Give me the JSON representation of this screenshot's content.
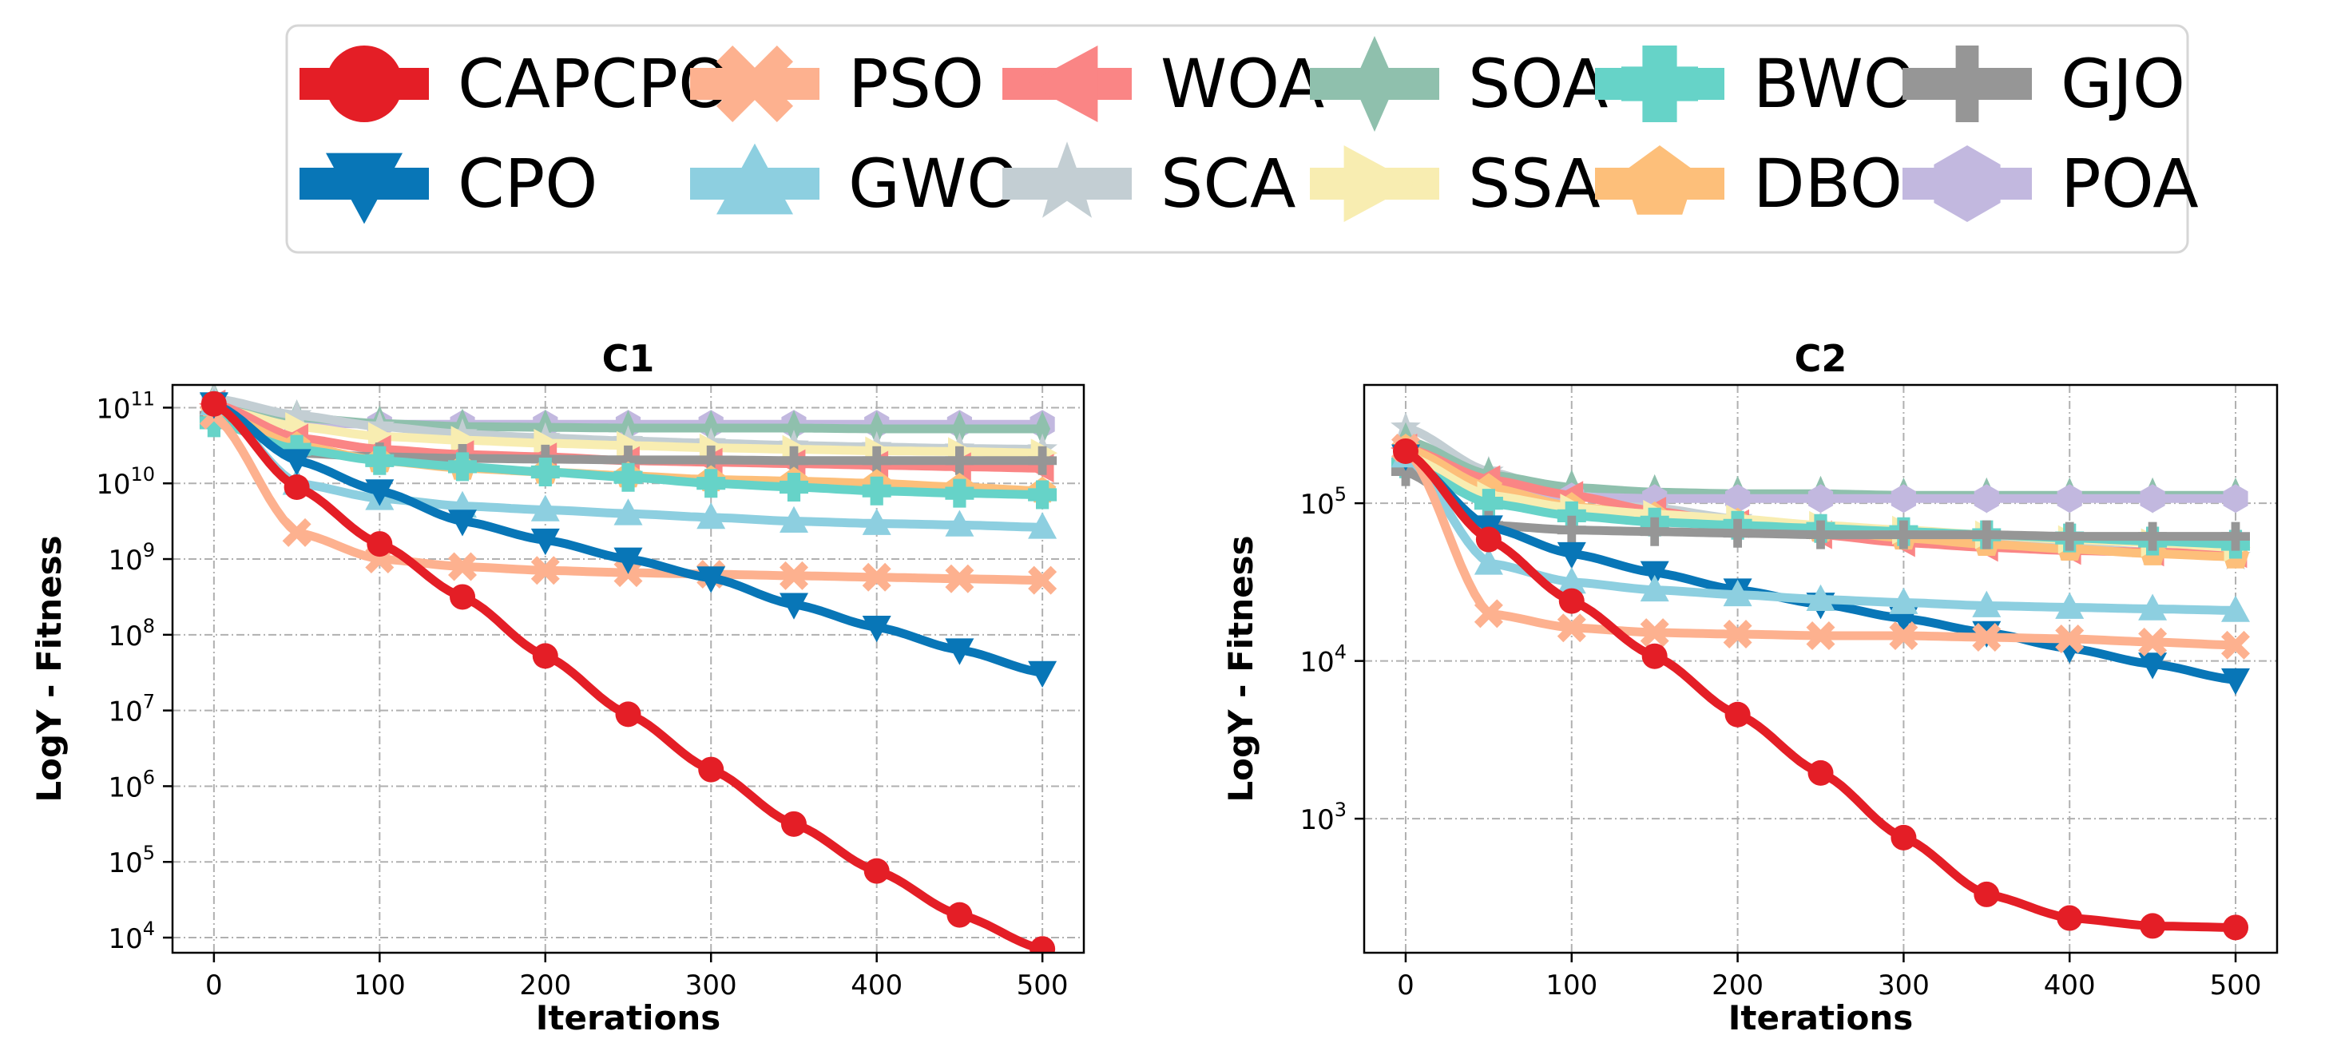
{
  "legend": {
    "items": [
      {
        "label": "CAPCPO",
        "color": "#e41e26",
        "marker": "circle"
      },
      {
        "label": "PSO",
        "color": "#fdb18f",
        "marker": "x"
      },
      {
        "label": "WOA",
        "color": "#fa8585",
        "marker": "tri-left"
      },
      {
        "label": "SOA",
        "color": "#8fc0ad",
        "marker": "diamond-thin"
      },
      {
        "label": "BWO",
        "color": "#66d3c8",
        "marker": "plus-fat"
      },
      {
        "label": "GJO",
        "color": "#969696",
        "marker": "plus"
      },
      {
        "label": "CPO",
        "color": "#0876b7",
        "marker": "tri-down"
      },
      {
        "label": "GWO",
        "color": "#8dcfe0",
        "marker": "tri-up"
      },
      {
        "label": "SCA",
        "color": "#c3ced3",
        "marker": "star"
      },
      {
        "label": "SSA",
        "color": "#f8edb1",
        "marker": "tri-right"
      },
      {
        "label": "DBO",
        "color": "#fdbf7a",
        "marker": "pentagon"
      },
      {
        "label": "POA",
        "color": "#c2b8df",
        "marker": "hexagon"
      }
    ]
  },
  "chart_data": [
    {
      "type": "line",
      "title": "C1",
      "xlabel": "Iterations",
      "ylabel": "LogY - Fitness",
      "yscale": "log",
      "xlim": [
        -25,
        525
      ],
      "ylim_exp": [
        3.8,
        11.3
      ],
      "xticks": [
        0,
        100,
        200,
        300,
        400,
        500
      ],
      "xtick_labels": [
        "0",
        "100",
        "200",
        "300",
        "400",
        "500"
      ],
      "yticks": [
        4,
        5,
        6,
        7,
        8,
        9,
        10,
        11
      ],
      "ytick_base": "10",
      "ytick_exps": [
        "4",
        "5",
        "6",
        "7",
        "8",
        "9",
        "10",
        "11"
      ],
      "grid": true,
      "x": [
        0,
        50,
        100,
        150,
        200,
        250,
        300,
        350,
        400,
        450,
        500
      ],
      "series": [
        {
          "name": "POA",
          "color": "#c2b8df",
          "marker": "hexagon",
          "log10": [
            11.05,
            10.8,
            10.78,
            10.78,
            10.78,
            10.78,
            10.78,
            10.78,
            10.78,
            10.78,
            10.78
          ]
        },
        {
          "name": "SOA",
          "color": "#8fc0ad",
          "marker": "diamond-thin",
          "log10": [
            11.1,
            10.87,
            10.79,
            10.75,
            10.74,
            10.73,
            10.73,
            10.73,
            10.72,
            10.72,
            10.72
          ]
        },
        {
          "name": "SCA",
          "color": "#c3ced3",
          "marker": "star",
          "log10": [
            11.12,
            10.9,
            10.75,
            10.65,
            10.6,
            10.56,
            10.53,
            10.5,
            10.48,
            10.46,
            10.45
          ]
        },
        {
          "name": "SSA",
          "color": "#f8edb1",
          "marker": "tri-right",
          "log10": [
            11.0,
            10.75,
            10.62,
            10.57,
            10.53,
            10.5,
            10.47,
            10.45,
            10.43,
            10.42,
            10.4
          ]
        },
        {
          "name": "WOA",
          "color": "#fa8585",
          "marker": "tri-left",
          "log10": [
            11.05,
            10.6,
            10.45,
            10.38,
            10.35,
            10.3,
            10.28,
            10.26,
            10.24,
            10.22,
            10.2
          ]
        },
        {
          "name": "GJO",
          "color": "#969696",
          "marker": "plus",
          "log10": [
            10.9,
            10.4,
            10.35,
            10.33,
            10.32,
            10.31,
            10.31,
            10.3,
            10.3,
            10.3,
            10.3
          ]
        },
        {
          "name": "DBO",
          "color": "#fdbf7a",
          "marker": "pentagon",
          "log10": [
            10.95,
            10.5,
            10.3,
            10.2,
            10.15,
            10.1,
            10.05,
            10.03,
            10.0,
            9.95,
            9.9
          ]
        },
        {
          "name": "BWO",
          "color": "#66d3c8",
          "marker": "plus-fat",
          "log10": [
            10.8,
            10.45,
            10.3,
            10.22,
            10.15,
            10.08,
            10.0,
            9.95,
            9.9,
            9.87,
            9.85
          ]
        },
        {
          "name": "GWO",
          "color": "#8dcfe0",
          "marker": "tri-up",
          "log10": [
            11.05,
            10.0,
            9.8,
            9.7,
            9.65,
            9.6,
            9.55,
            9.5,
            9.47,
            9.45,
            9.42
          ]
        },
        {
          "name": "PSO",
          "color": "#fdb18f",
          "marker": "x",
          "log10": [
            10.9,
            9.35,
            9.0,
            8.9,
            8.85,
            8.82,
            8.8,
            8.78,
            8.76,
            8.74,
            8.72
          ]
        },
        {
          "name": "CPO",
          "color": "#0876b7",
          "marker": "tri-down",
          "log10": [
            11.05,
            10.3,
            9.9,
            9.5,
            9.25,
            9.0,
            8.75,
            8.4,
            8.1,
            7.8,
            7.5
          ]
        },
        {
          "name": "CAPCPO",
          "color": "#e41e26",
          "marker": "circle",
          "log10": [
            11.05,
            9.95,
            9.2,
            8.5,
            7.72,
            6.95,
            6.22,
            5.5,
            4.88,
            4.3,
            3.85
          ]
        }
      ]
    },
    {
      "type": "line",
      "title": "C2",
      "xlabel": "Iterations",
      "ylabel": "LogY - Fitness",
      "yscale": "log",
      "xlim": [
        -25,
        525
      ],
      "ylim_exp": [
        2.15,
        5.75
      ],
      "xticks": [
        0,
        100,
        200,
        300,
        400,
        500
      ],
      "xtick_labels": [
        "0",
        "100",
        "200",
        "300",
        "400",
        "500"
      ],
      "yticks": [
        3,
        4,
        5
      ],
      "ytick_base": "10",
      "ytick_exps": [
        "3",
        "4",
        "5"
      ],
      "grid": true,
      "x": [
        0,
        50,
        100,
        150,
        200,
        250,
        300,
        350,
        400,
        450,
        500
      ],
      "series": [
        {
          "name": "SCA",
          "color": "#c3ced3",
          "marker": "star",
          "log10": [
            5.48,
            5.2,
            5.05,
            4.97,
            4.9,
            4.85,
            4.8,
            4.76,
            4.72,
            4.69,
            4.66
          ]
        },
        {
          "name": "SOA",
          "color": "#8fc0ad",
          "marker": "diamond-thin",
          "log10": [
            5.4,
            5.18,
            5.1,
            5.07,
            5.06,
            5.06,
            5.05,
            5.05,
            5.05,
            5.05,
            5.05
          ]
        },
        {
          "name": "POA",
          "color": "#c2b8df",
          "marker": "hexagon",
          "log10": [
            5.3,
            5.08,
            5.04,
            5.03,
            5.03,
            5.03,
            5.03,
            5.03,
            5.03,
            5.03,
            5.03
          ]
        },
        {
          "name": "WOA",
          "color": "#fa8585",
          "marker": "tri-left",
          "log10": [
            5.35,
            5.15,
            5.05,
            4.95,
            4.87,
            4.8,
            4.75,
            4.72,
            4.7,
            4.69,
            4.68
          ]
        },
        {
          "name": "DBO",
          "color": "#fdbf7a",
          "marker": "pentagon",
          "log10": [
            5.35,
            5.1,
            4.98,
            4.92,
            4.88,
            4.83,
            4.78,
            4.74,
            4.71,
            4.68,
            4.66
          ]
        },
        {
          "name": "SSA",
          "color": "#f8edb1",
          "marker": "tri-right",
          "log10": [
            5.3,
            5.05,
            4.97,
            4.93,
            4.9,
            4.86,
            4.83,
            4.8,
            4.77,
            4.75,
            4.72
          ]
        },
        {
          "name": "BWO",
          "color": "#66d3c8",
          "marker": "plus-fat",
          "log10": [
            5.25,
            5.0,
            4.92,
            4.88,
            4.86,
            4.84,
            4.82,
            4.8,
            4.78,
            4.76,
            4.74
          ]
        },
        {
          "name": "GJO",
          "color": "#969696",
          "marker": "plus",
          "log10": [
            5.2,
            4.86,
            4.83,
            4.82,
            4.81,
            4.8,
            4.8,
            4.8,
            4.79,
            4.79,
            4.79
          ]
        },
        {
          "name": "CPO",
          "color": "#0876b7",
          "marker": "tri-down",
          "log10": [
            5.3,
            4.85,
            4.68,
            4.56,
            4.45,
            4.36,
            4.27,
            4.18,
            4.08,
            3.98,
            3.88
          ]
        },
        {
          "name": "GWO",
          "color": "#8dcfe0",
          "marker": "tri-up",
          "log10": [
            5.3,
            4.62,
            4.5,
            4.45,
            4.42,
            4.39,
            4.37,
            4.35,
            4.34,
            4.33,
            4.32
          ]
        },
        {
          "name": "PSO",
          "color": "#fdb18f",
          "marker": "x",
          "log10": [
            5.35,
            4.3,
            4.21,
            4.18,
            4.17,
            4.16,
            4.16,
            4.15,
            4.14,
            4.12,
            4.1
          ]
        },
        {
          "name": "CAPCPO",
          "color": "#e41e26",
          "marker": "circle",
          "log10": [
            5.33,
            4.77,
            4.38,
            4.03,
            3.66,
            3.29,
            2.88,
            2.52,
            2.37,
            2.32,
            2.31
          ]
        }
      ]
    }
  ]
}
